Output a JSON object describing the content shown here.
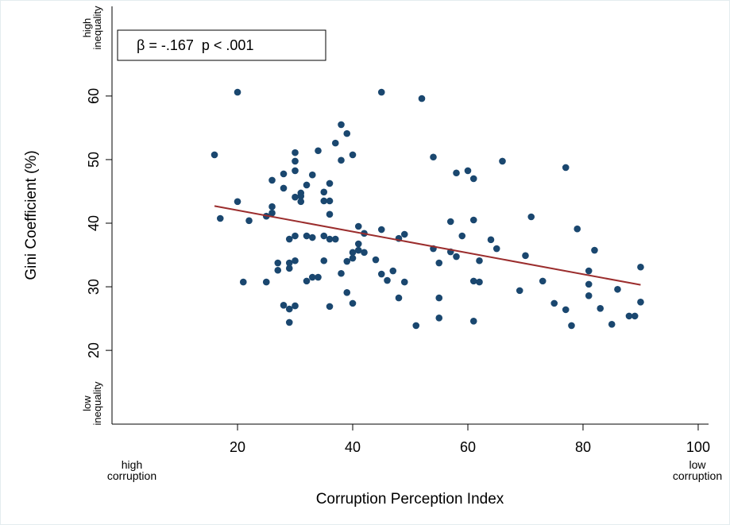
{
  "chart_data": {
    "type": "scatter",
    "xlabel": "Corruption Perception Index",
    "ylabel": "Gini Coefficient (%)",
    "annotation": "β = -.167  p < .001",
    "y_annotations": {
      "top": [
        "high",
        "inequality"
      ],
      "bottom": [
        "low",
        "inequality"
      ]
    },
    "x_annotations": {
      "left": [
        "high",
        "corruption"
      ],
      "right": [
        "low",
        "corruption"
      ]
    },
    "xlim": [
      -1.8,
      101.8
    ],
    "xticks": [
      20,
      40,
      60,
      80,
      100
    ],
    "ylim": [
      8.4,
      74.1
    ],
    "yticks": [
      20,
      30,
      40,
      50,
      60
    ],
    "color": "#1a476f",
    "x": [
      16,
      17,
      20,
      20,
      21,
      22,
      25,
      25,
      26,
      26,
      26,
      27,
      27,
      28,
      28,
      28,
      29,
      29,
      29,
      29,
      29,
      30,
      30,
      30,
      30,
      30,
      30,
      30,
      31,
      31,
      31,
      32,
      32,
      32,
      33,
      33,
      33,
      34,
      34,
      35,
      35,
      35,
      35,
      36,
      36,
      36,
      36,
      36,
      37,
      37,
      38,
      38,
      38,
      39,
      39,
      39,
      40,
      40,
      40,
      40,
      41,
      41,
      41,
      42,
      42,
      44,
      45,
      45,
      45,
      46,
      47,
      48,
      48,
      49,
      49,
      51,
      52,
      54,
      54,
      55,
      55,
      55,
      57,
      57,
      58,
      58,
      59,
      60,
      61,
      61,
      61,
      61,
      62,
      62,
      64,
      65,
      66,
      69,
      70,
      71,
      73,
      75,
      77,
      77,
      78,
      79,
      81,
      81,
      81,
      82,
      83,
      85,
      86,
      88,
      89,
      90,
      90
    ],
    "values": [
      50.75,
      40.75,
      60.6,
      43.4,
      30.75,
      40.4,
      30.75,
      41.1,
      46.75,
      42.6,
      41.6,
      33.75,
      32.6,
      47.75,
      45.5,
      27.1,
      33.75,
      32.9,
      37.5,
      26.5,
      24.4,
      51.1,
      49.75,
      48.25,
      44.1,
      38,
      34.1,
      27,
      44.75,
      44.25,
      43.4,
      46,
      38,
      30.9,
      47.6,
      37.75,
      31.5,
      51.4,
      31.5,
      44.9,
      43.5,
      38,
      34.1,
      46.25,
      43.5,
      41.4,
      37.5,
      26.9,
      37.5,
      52.6,
      55.5,
      49.9,
      32.1,
      54.1,
      34,
      29.1,
      50.75,
      35.4,
      27.4,
      34.5,
      39.5,
      36.75,
      35.75,
      38.4,
      35.4,
      34.25,
      60.6,
      39,
      32,
      31,
      32.5,
      37.6,
      28.25,
      38.25,
      30.75,
      23.9,
      59.6,
      50.4,
      36,
      33.75,
      28.25,
      25.1,
      40.25,
      35.5,
      34.75,
      47.9,
      38,
      48.25,
      47,
      40.5,
      30.9,
      24.6,
      34.1,
      30.75,
      37.4,
      36,
      49.75,
      29.4,
      34.9,
      41,
      30.9,
      27.4,
      48.75,
      26.4,
      23.9,
      39.1,
      32.5,
      30.4,
      28.6,
      35.75,
      26.6,
      24.1,
      29.6,
      25.4,
      25.4,
      33.1,
      27.6
    ],
    "fit": {
      "x": [
        16,
        90
      ],
      "values": [
        42.7,
        30.3
      ],
      "color": "#9b2d2d"
    }
  }
}
